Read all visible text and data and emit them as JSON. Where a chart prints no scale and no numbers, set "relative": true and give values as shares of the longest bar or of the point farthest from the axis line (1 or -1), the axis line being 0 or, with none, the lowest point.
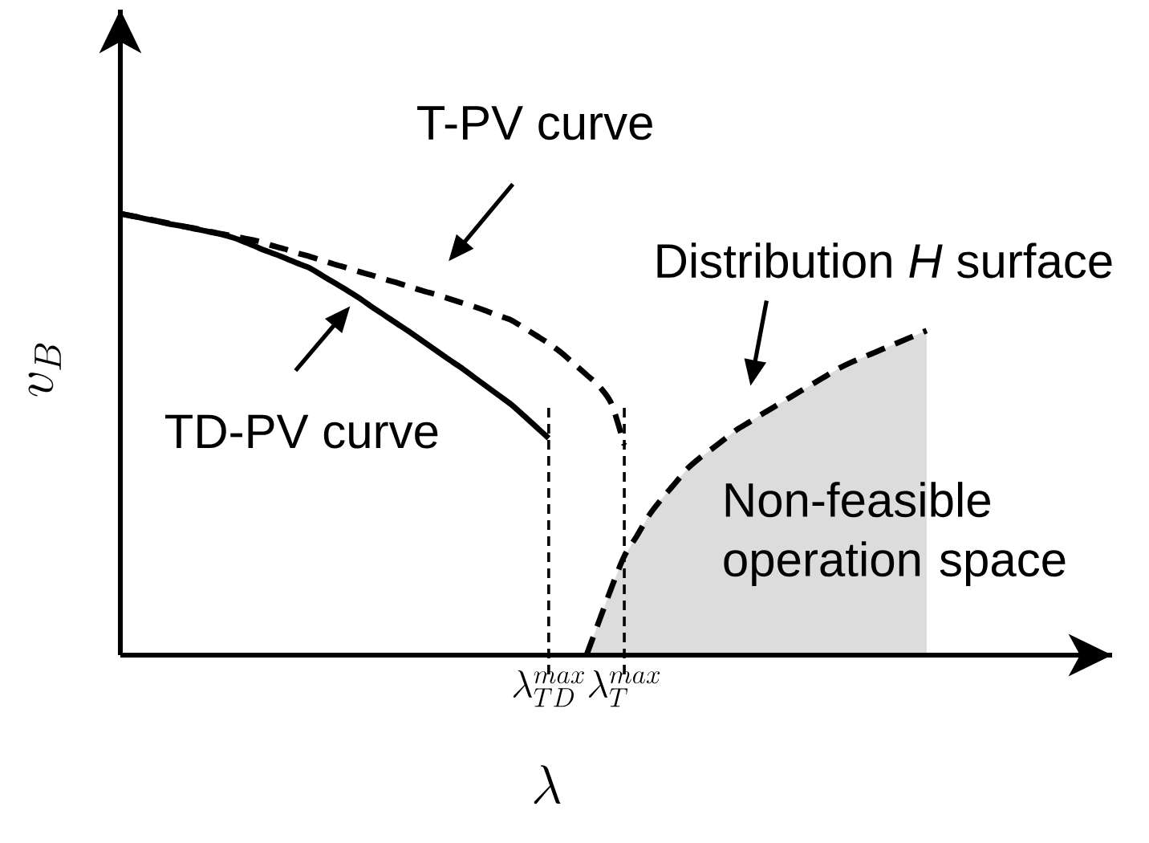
{
  "chart_data": {
    "type": "line",
    "xlabel": "\\lambda",
    "ylabel": "v_B",
    "relative": true,
    "categories": [
      null,
      null,
      null,
      null,
      null,
      null,
      null,
      null,
      null,
      null,
      null,
      null,
      null,
      null,
      null,
      null,
      null,
      null,
      null,
      null,
      null,
      null,
      null,
      null,
      null,
      null,
      null,
      null,
      null,
      null,
      null,
      null,
      null,
      null,
      "\\lambda_{TD}^{max}",
      null,
      null,
      null,
      null,
      null,
      "\\lambda_{T}^{max}",
      null,
      null,
      null,
      null,
      null,
      null,
      null,
      null,
      null,
      null,
      null,
      null,
      null,
      null,
      null,
      null,
      null,
      null,
      null,
      null,
      null,
      null,
      null,
      null
    ],
    "series": [
      {
        "name": "TD-PV curve",
        "color": "#000000",
        "line_style": "solid",
        "values": [
          1.0,
          0.994,
          0.988,
          0.982,
          0.976,
          0.971,
          0.965,
          0.959,
          0.953,
          0.945,
          0.934,
          0.922,
          0.911,
          0.9,
          0.888,
          0.877,
          0.86,
          0.843,
          0.826,
          0.808,
          0.788,
          0.769,
          0.75,
          0.731,
          0.711,
          0.691,
          0.671,
          0.652,
          0.631,
          0.61,
          0.589,
          0.568,
          0.543,
          0.517,
          0.491,
          null,
          null,
          null,
          null,
          null,
          null,
          null,
          null,
          null,
          null,
          null,
          null,
          null,
          null,
          null,
          null,
          null,
          null,
          null,
          null,
          null,
          null,
          null,
          null,
          null,
          null,
          null,
          null,
          null,
          null
        ]
      },
      {
        "name": "T-PV curve",
        "color": "#000000",
        "line_style": "dashed",
        "values": [
          1.0,
          0.994,
          0.989,
          0.983,
          0.977,
          0.971,
          0.966,
          0.96,
          0.954,
          0.949,
          0.943,
          0.937,
          0.928,
          0.92,
          0.911,
          0.903,
          0.894,
          0.885,
          0.877,
          0.868,
          0.86,
          0.851,
          0.843,
          0.834,
          0.825,
          0.817,
          0.808,
          0.799,
          0.79,
          0.78,
          0.769,
          0.759,
          0.742,
          0.724,
          0.706,
          0.685,
          0.66,
          0.635,
          0.609,
          0.568,
          0.476,
          null,
          null,
          null,
          null,
          null,
          null,
          null,
          null,
          null,
          null,
          null,
          null,
          null,
          null,
          null,
          null,
          null,
          null,
          null,
          null,
          null,
          null,
          null,
          null
        ]
      },
      {
        "name": "Distribution *H* surface",
        "type": "area",
        "color": "#dcdcdc",
        "line_style": "dashed",
        "values": [
          null,
          null,
          null,
          null,
          null,
          null,
          null,
          null,
          null,
          null,
          null,
          null,
          null,
          null,
          null,
          null,
          null,
          null,
          null,
          null,
          null,
          null,
          null,
          null,
          null,
          null,
          null,
          null,
          null,
          null,
          null,
          null,
          null,
          null,
          null,
          null,
          null,
          0.0,
          0.077,
          0.154,
          0.224,
          0.27,
          0.318,
          0.355,
          0.388,
          0.422,
          0.447,
          0.468,
          0.49,
          0.512,
          0.529,
          0.547,
          0.564,
          0.581,
          0.598,
          0.615,
          0.632,
          0.649,
          0.663,
          0.675,
          0.687,
          0.699,
          0.711,
          0.723,
          0.735
        ]
      }
    ],
    "annotations": [
      "Non-feasible operation space"
    ],
    "ref_lines": [
      {
        "axis": "x",
        "value": "\\lambda_{TD}^{max}",
        "line_style": "dashed"
      },
      {
        "axis": "x",
        "value": "\\lambda_{T}^{max}",
        "line_style": "dashed"
      }
    ]
  }
}
